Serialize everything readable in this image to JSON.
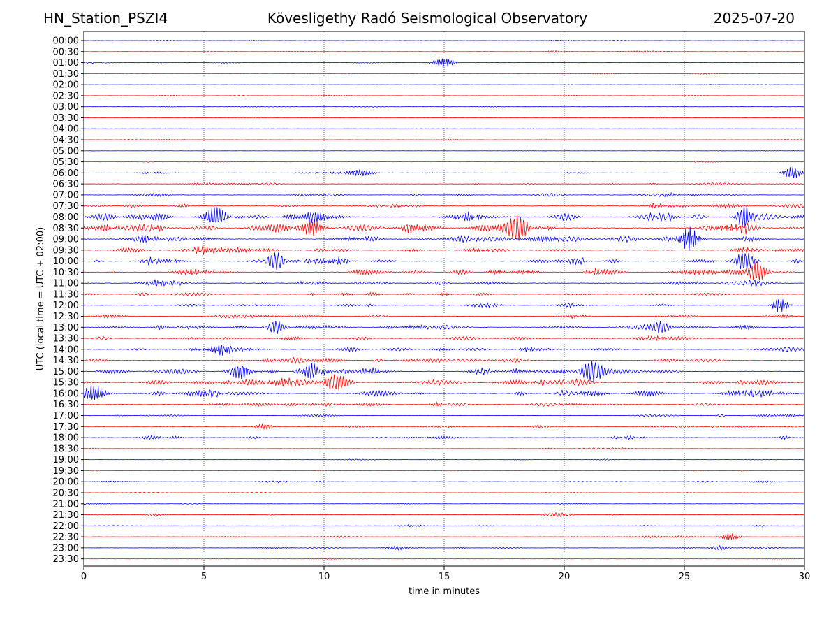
{
  "header": {
    "station": "HN_Station_PSZI4",
    "observatory": "Kövesligethy Radó Seismological Observatory",
    "date": "2025-07-20"
  },
  "chart_data": {
    "type": "line",
    "title": "Kövesligethy Radó Seismological Observatory",
    "xlabel": "time in minutes",
    "ylabel": "UTC (local time = UTC + 02:00)",
    "xlim": [
      0,
      30
    ],
    "x_ticks": [
      "0",
      "5",
      "10",
      "15",
      "20",
      "25",
      "30"
    ],
    "grid": "vertical dotted lines at 5-minute intervals",
    "row_colors": [
      "#0000ff",
      "#ff0000"
    ],
    "rows": [
      "00:00",
      "00:30",
      "01:00",
      "01:30",
      "02:00",
      "02:30",
      "03:00",
      "03:30",
      "04:00",
      "04:30",
      "05:00",
      "05:30",
      "06:00",
      "06:30",
      "07:00",
      "07:30",
      "08:00",
      "08:30",
      "09:00",
      "09:30",
      "10:00",
      "10:30",
      "11:00",
      "11:30",
      "12:00",
      "12:30",
      "13:00",
      "13:30",
      "14:00",
      "14:30",
      "15:00",
      "15:30",
      "16:00",
      "16:30",
      "17:00",
      "17:30",
      "18:00",
      "18:30",
      "19:00",
      "19:30",
      "20:00",
      "20:30",
      "21:00",
      "21:30",
      "22:00",
      "22:30",
      "23:00",
      "23:30"
    ],
    "activity": [
      0.15,
      0.2,
      0.2,
      0.15,
      0.1,
      0.15,
      0.15,
      0.1,
      0.08,
      0.15,
      0.1,
      0.15,
      0.3,
      0.35,
      0.45,
      0.6,
      0.95,
      1.0,
      0.75,
      0.75,
      0.8,
      0.65,
      0.6,
      0.5,
      0.45,
      0.5,
      0.65,
      0.5,
      0.6,
      0.55,
      0.85,
      0.8,
      0.8,
      0.5,
      0.35,
      0.3,
      0.35,
      0.2,
      0.15,
      0.15,
      0.25,
      0.2,
      0.2,
      0.2,
      0.2,
      0.25,
      0.25,
      0.15
    ],
    "events": [
      {
        "row": "01:00",
        "minute": 15.0,
        "amp": 7
      },
      {
        "row": "06:00",
        "minute": 11.5,
        "amp": 5
      },
      {
        "row": "06:00",
        "minute": 29.5,
        "amp": 9
      },
      {
        "row": "08:00",
        "minute": 5.5,
        "amp": 14
      },
      {
        "row": "08:00",
        "minute": 27.5,
        "amp": 18
      },
      {
        "row": "08:30",
        "minute": 18.0,
        "amp": 18
      },
      {
        "row": "08:30",
        "minute": 9.5,
        "amp": 12
      },
      {
        "row": "09:00",
        "minute": 25.2,
        "amp": 18
      },
      {
        "row": "10:00",
        "minute": 8.0,
        "amp": 14
      },
      {
        "row": "10:00",
        "minute": 27.5,
        "amp": 14
      },
      {
        "row": "10:30",
        "minute": 28.0,
        "amp": 14
      },
      {
        "row": "12:00",
        "minute": 29.0,
        "amp": 10
      },
      {
        "row": "13:00",
        "minute": 8.0,
        "amp": 10
      },
      {
        "row": "13:00",
        "minute": 24.0,
        "amp": 10
      },
      {
        "row": "14:00",
        "minute": 5.8,
        "amp": 8
      },
      {
        "row": "15:00",
        "minute": 9.5,
        "amp": 12
      },
      {
        "row": "15:00",
        "minute": 21.2,
        "amp": 16
      },
      {
        "row": "15:00",
        "minute": 6.5,
        "amp": 12
      },
      {
        "row": "15:30",
        "minute": 10.5,
        "amp": 12
      },
      {
        "row": "16:00",
        "minute": 0.4,
        "amp": 11
      },
      {
        "row": "17:30",
        "minute": 7.5,
        "amp": 4
      },
      {
        "row": "18:00",
        "minute": 2.8,
        "amp": 3
      },
      {
        "row": "21:30",
        "minute": 19.7,
        "amp": 3
      },
      {
        "row": "22:30",
        "minute": 26.9,
        "amp": 5
      },
      {
        "row": "23:00",
        "minute": 13.0,
        "amp": 3
      },
      {
        "row": "23:00",
        "minute": 26.5,
        "amp": 3
      }
    ]
  }
}
